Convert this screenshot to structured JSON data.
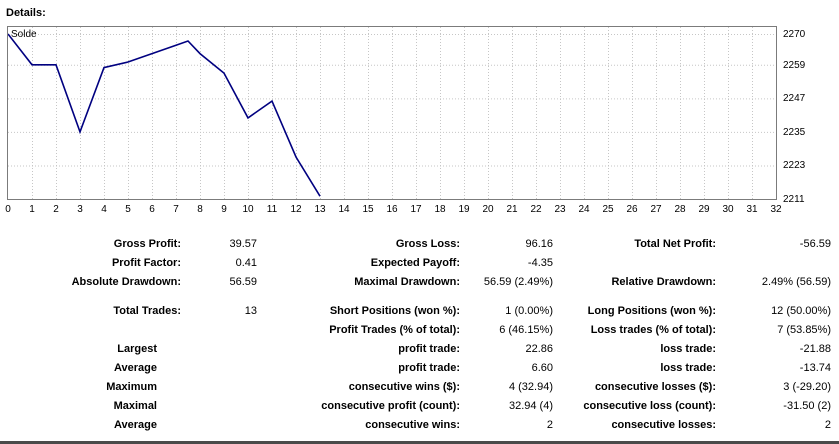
{
  "page": {
    "title": "Details:"
  },
  "chart_data": {
    "type": "line",
    "series_label": "Solde",
    "series": [
      {
        "name": "Solde",
        "color": "#000080",
        "points": [
          [
            0,
            2270
          ],
          [
            1,
            2259
          ],
          [
            2,
            2259
          ],
          [
            3,
            2235
          ],
          [
            4,
            2258
          ],
          [
            5,
            2260
          ],
          [
            6,
            2263
          ],
          [
            7,
            2266
          ],
          [
            7.5,
            2267.5
          ],
          [
            8,
            2263
          ],
          [
            9,
            2256
          ],
          [
            10,
            2240
          ],
          [
            11,
            2246
          ],
          [
            12,
            2226
          ],
          [
            13,
            2212
          ]
        ]
      }
    ],
    "x_ticks": [
      0,
      1,
      2,
      3,
      4,
      5,
      6,
      7,
      8,
      9,
      10,
      11,
      12,
      13,
      14,
      15,
      16,
      17,
      18,
      19,
      20,
      21,
      22,
      23,
      24,
      25,
      26,
      27,
      28,
      29,
      30,
      31,
      32
    ],
    "y_ticks": [
      2270,
      2259,
      2247,
      2235,
      2223,
      2211
    ],
    "x_range": [
      0,
      32
    ],
    "y_range": [
      2211,
      2272.5
    ],
    "grid": true,
    "grid_color": "#c6c6c6",
    "legend_position": "top-left-inside"
  },
  "stats": {
    "rows": [
      {
        "cells": [
          "Gross Profit:",
          "39.57",
          "Gross Loss:",
          "96.16",
          "Total Net Profit:",
          "-56.59"
        ]
      },
      {
        "cells": [
          "Profit Factor:",
          "0.41",
          "Expected Payoff:",
          "-4.35",
          "",
          ""
        ]
      },
      {
        "cells": [
          "Absolute Drawdown:",
          "56.59",
          "Maximal Drawdown:",
          "56.59 (2.49%)",
          "Relative Drawdown:",
          "2.49% (56.59)"
        ]
      },
      {
        "spacer": true
      },
      {
        "cells": [
          "Total Trades:",
          "13",
          "Short Positions (won %):",
          "1 (0.00%)",
          "Long Positions (won %):",
          "12 (50.00%)"
        ]
      },
      {
        "cells": [
          "",
          "",
          "Profit Trades (% of total):",
          "6 (46.15%)",
          "Loss trades (% of total):",
          "7 (53.85%)"
        ]
      },
      {
        "cells": [
          "Largest",
          "",
          "profit trade:",
          "22.86",
          "loss trade:",
          "-21.88"
        ]
      },
      {
        "cells": [
          "Average",
          "",
          "profit trade:",
          "6.60",
          "loss trade:",
          "-13.74"
        ]
      },
      {
        "cells": [
          "Maximum",
          "",
          "consecutive wins ($):",
          "4 (32.94)",
          "consecutive losses ($):",
          "3 (-29.20)"
        ]
      },
      {
        "cells": [
          "Maximal",
          "",
          "consecutive profit (count):",
          "32.94 (4)",
          "consecutive loss (count):",
          "-31.50 (2)"
        ]
      },
      {
        "cells": [
          "Average",
          "",
          "consecutive wins:",
          "2",
          "consecutive losses:",
          "2"
        ]
      }
    ]
  }
}
